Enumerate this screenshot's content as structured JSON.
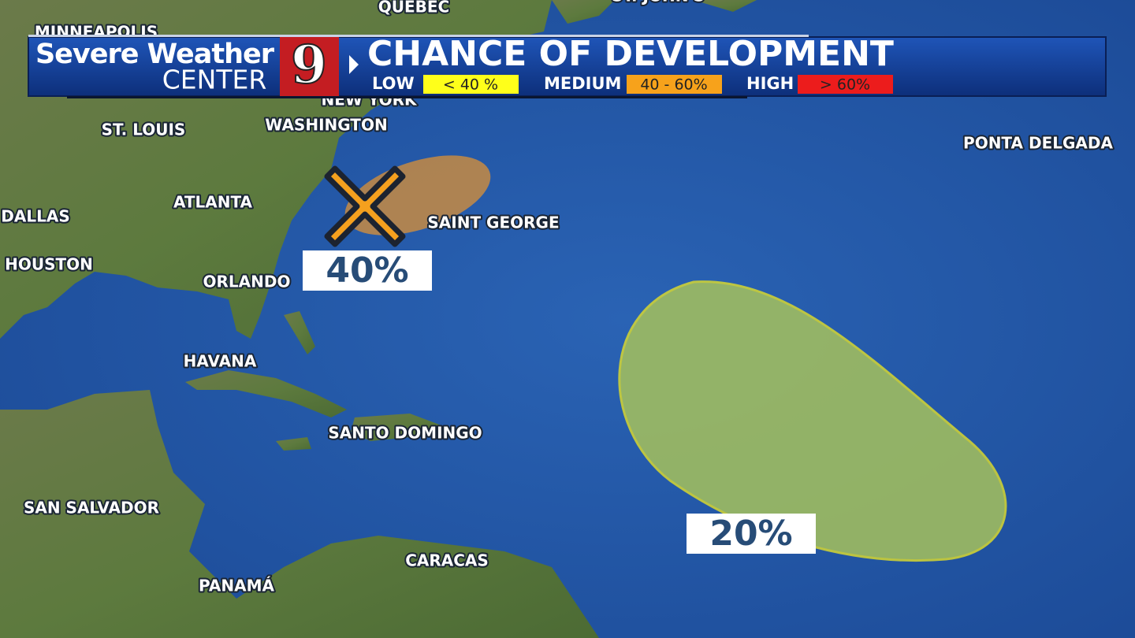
{
  "header": {
    "brand_line1": "Severe Weather",
    "brand_line2": "CENTER",
    "logo": "9",
    "title": "CHANCE OF DEVELOPMENT"
  },
  "legend": [
    {
      "label": "LOW",
      "range": "< 40 %",
      "color": "#ffff1a"
    },
    {
      "label": "MEDIUM",
      "range": "40 - 60%",
      "color": "#f7a21b"
    },
    {
      "label": "HIGH",
      "range": "> 60%",
      "color": "#ec1c1c"
    }
  ],
  "cities": [
    "QUÉBEC",
    "ST. JOHN'S",
    "MINNEAPOLIS",
    "NEW YORK",
    "ST. LOUIS",
    "WASHINGTON",
    "PONTA DELGADA",
    "ATLANTA",
    "DALLAS",
    "SAINT GEORGE",
    "HOUSTON",
    "ORLANDO",
    "HAVANA",
    "SANTO DOMINGO",
    "SAN SALVADOR",
    "CARACAS",
    "PANAMÁ"
  ],
  "areas": [
    {
      "chance": "40%",
      "color": "#e8952e"
    },
    {
      "chance": "20%",
      "color": "#a6c25c"
    }
  ]
}
